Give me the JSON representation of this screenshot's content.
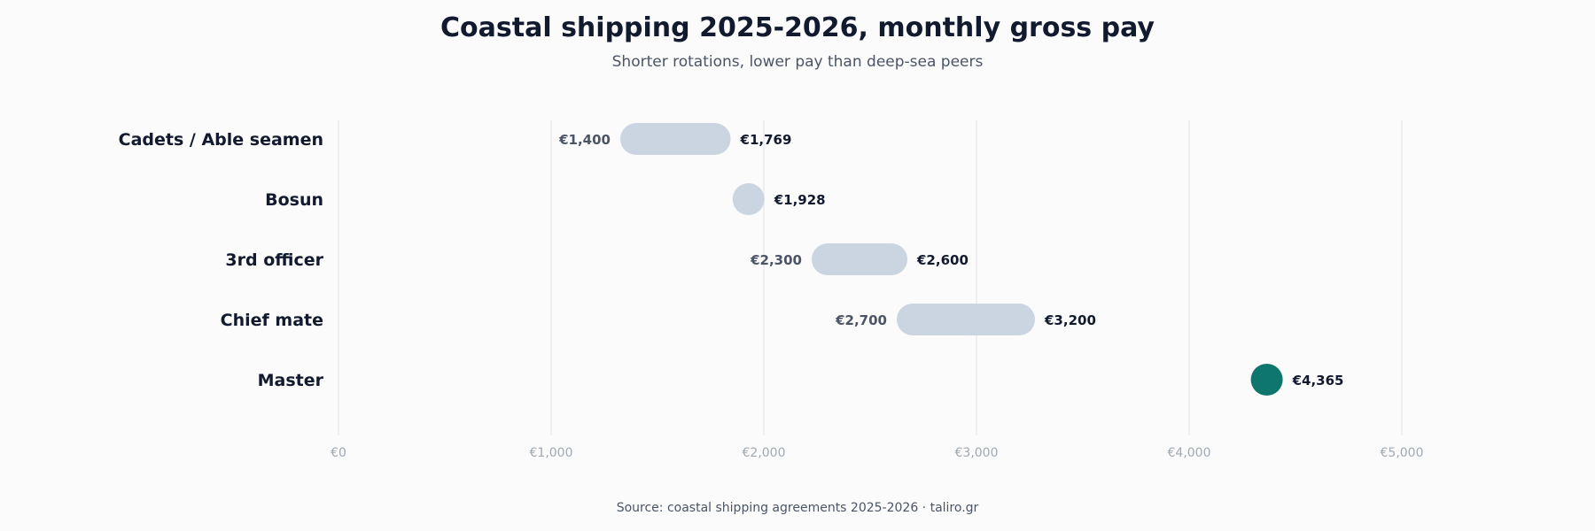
{
  "title": "Coastal shipping 2025-2026, monthly gross pay",
  "subtitle": "Shorter rotations, lower pay than deep-sea peers",
  "source": "Source: coastal shipping agreements 2025-2026 · taliro.gr",
  "chart_data": {
    "type": "range-bar",
    "title": "Coastal shipping 2025-2026, monthly gross pay",
    "subtitle": "Shorter rotations, lower pay than deep-sea peers",
    "xlabel": "",
    "ylabel": "",
    "xlim": [
      0,
      5000
    ],
    "grid": true,
    "ticks": [
      {
        "value": 0,
        "label": "€0"
      },
      {
        "value": 1000,
        "label": "€1,000"
      },
      {
        "value": 2000,
        "label": "€2,000"
      },
      {
        "value": 3000,
        "label": "€3,000"
      },
      {
        "value": 4000,
        "label": "€4,000"
      },
      {
        "value": 5000,
        "label": "€5,000"
      }
    ],
    "rows": [
      {
        "category": "Cadets / Able seamen",
        "low": 1400,
        "high": 1769,
        "low_label": "€1,400",
        "high_label": "€1,769",
        "highlight": false
      },
      {
        "category": "Bosun",
        "low": 1928,
        "high": 1928,
        "low_label": "",
        "high_label": "€1,928",
        "highlight": false
      },
      {
        "category": "3rd officer",
        "low": 2300,
        "high": 2600,
        "low_label": "€2,300",
        "high_label": "€2,600",
        "highlight": false
      },
      {
        "category": "Chief mate",
        "low": 2700,
        "high": 3200,
        "low_label": "€2,700",
        "high_label": "€3,200",
        "highlight": false
      },
      {
        "category": "Master",
        "low": 4365,
        "high": 4365,
        "low_label": "",
        "high_label": "€4,365",
        "highlight": true
      }
    ],
    "colors": {
      "range": "#cbd5e1",
      "highlight": "#0f766e",
      "grid": "#e5e7eb"
    }
  }
}
